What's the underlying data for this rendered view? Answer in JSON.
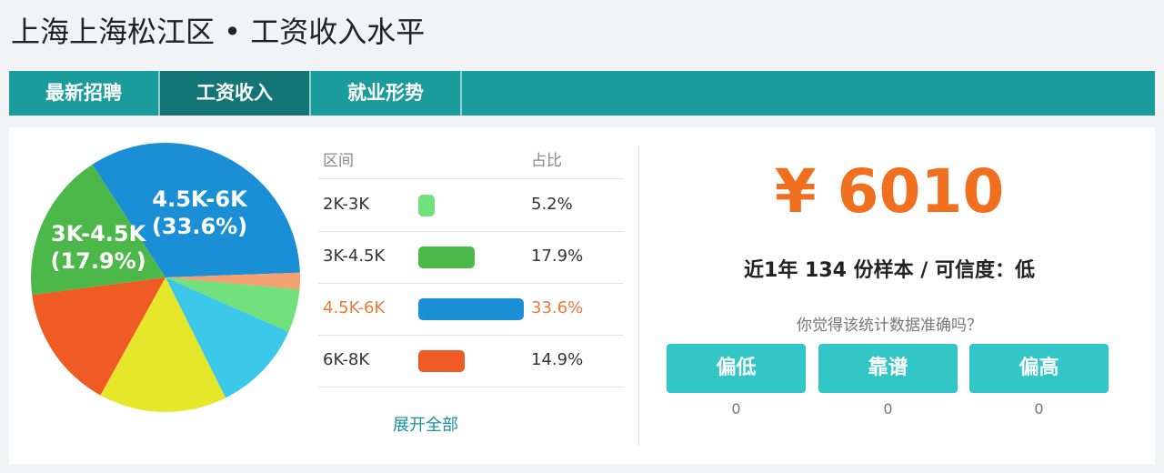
{
  "header": {
    "title": "上海上海松江区 • 工资收入水平"
  },
  "tabs": [
    "最新招聘",
    "工资收入",
    "就业形势"
  ],
  "active_tab": 1,
  "chart_data": {
    "type": "pie",
    "categories": [
      "2K-3K",
      "3K-4.5K",
      "4.5K-6K",
      "6K-8K",
      null,
      null,
      null
    ],
    "values": [
      5.2,
      17.9,
      33.6,
      14.9,
      2,
      11,
      15.4
    ],
    "value_labels": [
      "5.2%",
      "17.9%",
      "33.6%",
      "14.9%",
      null,
      null,
      null
    ],
    "slice_labels": [
      null,
      "(17.9%)",
      "(33.6%)",
      null,
      null,
      null,
      null
    ],
    "colors": [
      "#72e07c",
      "#4db84a",
      "#1b8fd6",
      "#f05a24",
      "#f4a070",
      "#3cc8e8",
      "#e6e62a"
    ]
  },
  "table": {
    "header": [
      "区间",
      "占比"
    ],
    "more": "展开全部"
  },
  "salary": "¥ 6010",
  "summary": "近1年 134 份样本 / 可信度：低",
  "question": "你觉得该统计数据准确吗？",
  "votes": [
    {
      "label": "偏低",
      "count": 0
    },
    {
      "label": "靠谱",
      "count": 0
    },
    {
      "label": "偏高",
      "count": 0
    }
  ]
}
